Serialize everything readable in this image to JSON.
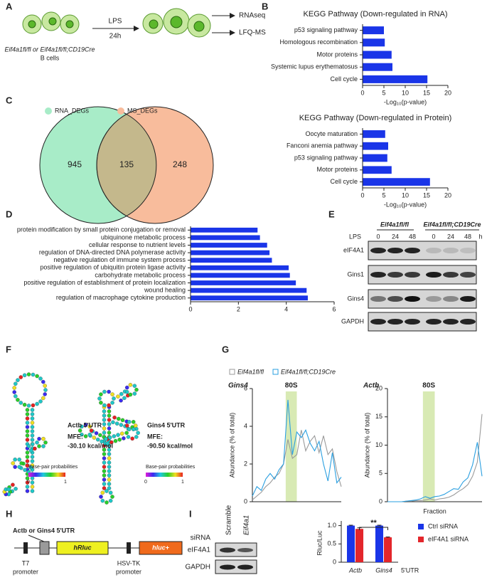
{
  "panels": {
    "letters": [
      "A",
      "B",
      "C",
      "D",
      "E",
      "F",
      "G",
      "H",
      "I"
    ],
    "A": {
      "stimulus": "LPS",
      "duration": "24h",
      "assays": [
        "RNAseq",
        "LFQ-MS"
      ],
      "genotypes": "Eif4a1fl/fl or Eif4a1fl/fl;CD19Cre",
      "cells": "B cells"
    },
    "C": {
      "sets": [
        "RNA_DEGs",
        "MS_DEGs"
      ],
      "counts": {
        "rna_only": 945,
        "both": 135,
        "ms_only": 248
      }
    },
    "E": {
      "groups": [
        "Eif4a1fl/fl",
        "Eif4a1fl/fl;CD19Cre"
      ],
      "treatment": "LPS",
      "times": [
        0,
        24,
        48,
        0,
        24,
        48
      ],
      "time_unit": "h",
      "proteins": [
        "eIF4A1",
        "Gins1",
        "Gins4",
        "GAPDH"
      ]
    },
    "F": {
      "structures": [
        {
          "name": "Actb 5'UTR",
          "mfe_label": "MFE:",
          "mfe": "-30.10 kcal/mol"
        },
        {
          "name": "Gins4 5'UTR",
          "mfe_label": "MFE:",
          "mfe": "-90.50 kcal/mol"
        }
      ],
      "scale_title": "Base-pair probabilities",
      "scale_ends": [
        "0",
        "1"
      ]
    },
    "H": {
      "insert": "Actb or Gins4 5'UTR",
      "reporters": [
        "hRluc",
        "hluc+"
      ],
      "promoters": [
        [
          "T7",
          "promoter"
        ],
        [
          "HSV-TK",
          "promoter"
        ]
      ]
    },
    "I": {
      "row_title": "siRNA",
      "conditions": [
        "Scramble",
        "Eif4a1"
      ],
      "proteins": [
        "eIF4A1",
        "GAPDH"
      ]
    }
  },
  "chart_data": [
    {
      "type": "hbar",
      "title": "KEGG Pathway (Down-regulated in RNA)",
      "categories": [
        "p53 signaling pathway",
        "Homologous recombination",
        "Motor proteins",
        "Systemic lupus erythematosus",
        "Cell cycle"
      ],
      "values": [
        5,
        5.2,
        6.8,
        7,
        15.2
      ],
      "color": "#1a35e8",
      "xlim": [
        0,
        20
      ],
      "xticks": [
        0,
        5,
        10,
        15,
        20
      ],
      "xlabel": "-Log₁₀(p-value)"
    },
    {
      "type": "hbar",
      "title": "KEGG Pathway (Down-regulated in Protein)",
      "categories": [
        "Oocyte maturation",
        "Fanconi anemia pathway",
        "p53 signaling pathway",
        "Motor proteins",
        "Cell cycle"
      ],
      "values": [
        5.3,
        6,
        5.8,
        6.8,
        15.8
      ],
      "color": "#1a35e8",
      "xlim": [
        0,
        20
      ],
      "xticks": [
        0,
        5,
        10,
        15,
        20
      ],
      "xlabel": "-Log₁₀(p-value)"
    },
    {
      "type": "hbar",
      "categories": [
        "protein modification by small protein conjugation or removal",
        "ubiquinone metabolic process",
        "cellular response to nutrient levels",
        "regulation of DNA-directed DNA polymerase activity",
        "negative regulation of immune system process",
        "positive regulation of ubiquitin protein ligase activity",
        "carbohydrate metabolic process",
        "positive regulation of establishment of protein localization",
        "wound healing",
        "regulation of macrophage cytokine production"
      ],
      "values": [
        2.8,
        2.9,
        3.2,
        3.3,
        3.4,
        4.1,
        4.15,
        4.4,
        4.85,
        4.9
      ],
      "color": "#1a35e8",
      "category_label_colors": [
        "#222",
        "#222",
        "#222",
        "#e3262b",
        "#222",
        "#222",
        "#222",
        "#222",
        "#222",
        "#222"
      ],
      "xlim": [
        0,
        6
      ],
      "xticks": [
        0,
        2,
        4,
        6
      ]
    },
    {
      "type": "line",
      "title": "Gins4",
      "annotation": "80S",
      "ylabel": "Abundance (% of total)",
      "legend": "top",
      "categories": [
        null,
        null,
        null,
        null,
        null,
        null,
        null,
        null,
        null,
        null,
        null,
        null,
        null,
        null,
        null,
        null,
        null,
        null,
        null,
        null,
        null
      ],
      "series": [
        {
          "name": "Eif4a1fl/fl",
          "color": "#9a9a9a",
          "values": [
            0.1,
            0.3,
            0.5,
            0.8,
            1.0,
            1.3,
            1.5,
            2.0,
            3.3,
            2.3,
            2.5,
            3.8,
            2.7,
            3.2,
            3.5,
            2.6,
            3.5,
            2.5,
            2.8,
            1.6,
            0.8
          ]
        },
        {
          "name": "Eif4a1fl/fl;CD19Cre",
          "color": "#2a9fe0",
          "values": [
            0.3,
            0.8,
            0.6,
            1.2,
            1.5,
            1.2,
            1.7,
            2.0,
            5.4,
            2.5,
            3.7,
            3.4,
            3.8,
            3.1,
            2.7,
            3.2,
            2.0,
            1.1,
            2.6,
            1.0,
            1.3
          ]
        }
      ],
      "ylim": [
        0,
        6
      ],
      "yticks": [
        0,
        2,
        4,
        6
      ]
    },
    {
      "type": "line",
      "title": "Actb",
      "annotation": "80S",
      "ylabel": "Abundance (% of total)",
      "xlabel": "Fraction",
      "categories": [
        null,
        null,
        null,
        null,
        null,
        null,
        null,
        null,
        null,
        null,
        null,
        null,
        null,
        null,
        null,
        null,
        null,
        null,
        null,
        null,
        null
      ],
      "series": [
        {
          "name": "Eif4a1fl/fl",
          "color": "#9a9a9a",
          "values": [
            0,
            0,
            0,
            0,
            0.1,
            0.1,
            0.2,
            0.2,
            0.3,
            0.5,
            0.3,
            0.5,
            0.6,
            0.8,
            1.2,
            1.8,
            2.3,
            3.0,
            4.5,
            7.0,
            15.5
          ]
        },
        {
          "name": "Eif4a1fl/fl;CD19Cre",
          "color": "#2a9fe0",
          "values": [
            0,
            0,
            0,
            0,
            0.1,
            0.2,
            0.3,
            0.5,
            0.9,
            0.6,
            0.9,
            1.0,
            1.3,
            1.8,
            2.3,
            2.2,
            3.5,
            4.2,
            6.5,
            10.5,
            4.5
          ]
        }
      ],
      "ylim": [
        0,
        20
      ],
      "yticks": [
        0,
        5,
        10,
        15,
        20
      ]
    },
    {
      "type": "groupbar",
      "ylabel": "Rluc/Luc",
      "categories": [
        "Actb",
        "Gins4"
      ],
      "x_suffix": "5'UTR",
      "annotation": "**",
      "legend": "right",
      "series": [
        {
          "name": "Ctrl siRNA",
          "color": "#1a35e8",
          "values": [
            1,
            1
          ],
          "errors": [
            0.01,
            0.01
          ]
        },
        {
          "name": "eIF4A1 siRNA",
          "color": "#e3262b",
          "values": [
            0.91,
            0.68
          ],
          "errors": [
            0.03,
            0.01
          ]
        }
      ],
      "ylim": [
        0,
        1.05
      ],
      "yticks": [
        0,
        0.5,
        {
          "value": 1,
          "label": "1.0"
        }
      ]
    }
  ]
}
